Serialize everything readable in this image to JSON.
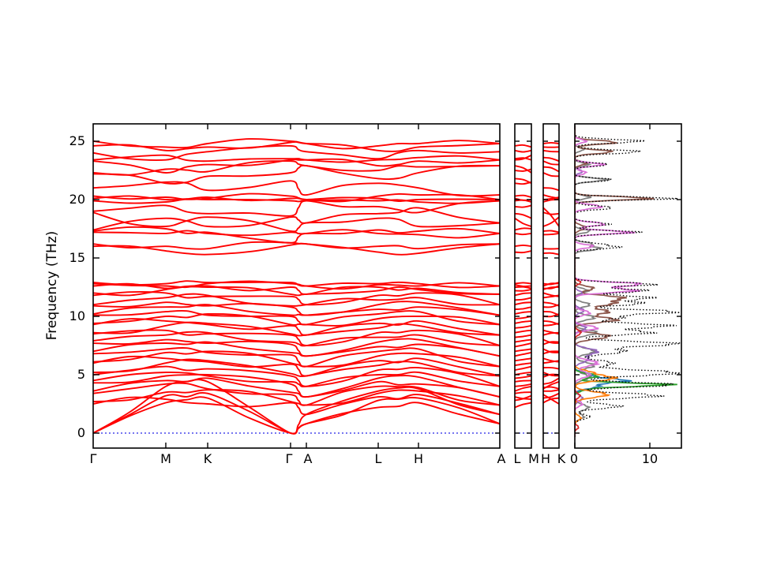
{
  "chart_data": {
    "type": "line",
    "title": "",
    "ylabel": "Frequency (THz)",
    "ylim": [
      -1.3,
      26.5
    ],
    "yticks": [
      0,
      5,
      10,
      15,
      20,
      25
    ],
    "ytick_labels_desc": [
      "25",
      "20",
      "15",
      "10",
      "5",
      "0"
    ],
    "band_color": "#ff0000",
    "zero_line_color": "#2424e8",
    "axis_color": "#000000",
    "legend": null,
    "grid": false,
    "panels": {
      "main": {
        "kpath": [
          "Γ",
          "M",
          "K",
          "Γ",
          "A",
          "L",
          "H",
          "A"
        ],
        "k_fracs": [
          0,
          0.1786,
          0.2816,
          0.4854,
          0.5243,
          0.701,
          0.8,
          1.0
        ]
      },
      "lm": {
        "kpath": [
          "L",
          "M"
        ]
      },
      "hk": {
        "kpath": [
          "H",
          "K"
        ]
      },
      "dos": {
        "xtick_labels": [
          "0",
          "10"
        ],
        "xticks": [
          0,
          10
        ],
        "xmax": 14.2,
        "xlabel": ""
      }
    },
    "bands": [
      [
        0.0,
        2.6,
        3.0,
        0.0,
        0.8,
        2.2,
        2.6,
        0.8
      ],
      [
        0.0,
        3.2,
        3.4,
        0.0,
        0.8,
        2.8,
        3.0,
        0.8
      ],
      [
        0.0,
        4.0,
        4.4,
        0.0,
        1.6,
        3.6,
        3.8,
        1.6
      ],
      [
        2.5,
        2.9,
        2.5,
        2.6,
        1.6,
        3.1,
        3.3,
        1.6
      ],
      [
        2.7,
        3.5,
        3.7,
        2.7,
        2.4,
        3.4,
        3.6,
        2.4
      ],
      [
        3.4,
        4.2,
        3.8,
        3.3,
        2.4,
        4.0,
        3.9,
        2.4
      ],
      [
        3.6,
        4.5,
        4.7,
        3.5,
        3.1,
        4.4,
        4.2,
        3.1
      ],
      [
        4.3,
        4.9,
        5.0,
        4.2,
        3.1,
        4.7,
        4.8,
        3.1
      ],
      [
        4.5,
        5.2,
        4.9,
        4.4,
        4.0,
        5.0,
        5.2,
        4.0
      ],
      [
        5.0,
        5.7,
        5.5,
        4.9,
        4.0,
        5.4,
        5.6,
        4.0
      ],
      [
        5.2,
        6.0,
        6.2,
        5.1,
        4.9,
        5.8,
        6.0,
        4.9
      ],
      [
        6.0,
        6.4,
        6.1,
        5.9,
        4.9,
        6.2,
        6.4,
        4.9
      ],
      [
        6.1,
        6.9,
        7.0,
        6.0,
        5.7,
        6.6,
        6.8,
        5.7
      ],
      [
        6.8,
        7.2,
        6.9,
        6.7,
        5.7,
        7.0,
        7.2,
        5.7
      ],
      [
        7.0,
        7.7,
        7.8,
        6.9,
        6.6,
        7.4,
        7.6,
        6.6
      ],
      [
        7.7,
        8.0,
        7.7,
        7.6,
        6.6,
        7.8,
        8.0,
        6.6
      ],
      [
        7.9,
        8.4,
        8.6,
        7.8,
        7.5,
        8.2,
        8.4,
        7.5
      ],
      [
        8.5,
        8.8,
        8.5,
        8.4,
        7.5,
        8.6,
        8.8,
        7.5
      ],
      [
        8.6,
        9.2,
        9.4,
        8.5,
        8.4,
        9.0,
        9.2,
        8.4
      ],
      [
        9.3,
        9.6,
        9.3,
        9.2,
        8.4,
        9.4,
        9.6,
        8.4
      ],
      [
        9.4,
        10.0,
        10.2,
        9.3,
        9.3,
        9.8,
        10.0,
        9.3
      ],
      [
        10.1,
        10.4,
        10.1,
        10.0,
        9.3,
        10.2,
        10.4,
        9.3
      ],
      [
        10.2,
        10.8,
        11.0,
        10.1,
        10.1,
        10.6,
        10.8,
        10.1
      ],
      [
        10.9,
        11.2,
        10.9,
        10.8,
        10.1,
        11.0,
        11.2,
        10.1
      ],
      [
        11.0,
        11.6,
        11.8,
        10.9,
        11.0,
        11.4,
        11.6,
        11.0
      ],
      [
        11.8,
        12.0,
        11.7,
        11.7,
        11.0,
        11.8,
        12.0,
        11.0
      ],
      [
        12.0,
        12.3,
        12.5,
        11.9,
        11.9,
        12.2,
        12.3,
        11.9
      ],
      [
        12.6,
        12.4,
        12.6,
        12.5,
        11.9,
        12.5,
        12.4,
        11.9
      ],
      [
        12.8,
        12.6,
        12.8,
        12.8,
        12.6,
        12.7,
        12.6,
        12.6
      ],
      [
        12.9,
        12.8,
        12.9,
        12.9,
        12.6,
        12.8,
        12.8,
        12.6
      ],
      [
        16.0,
        15.6,
        15.3,
        16.1,
        16.2,
        15.5,
        15.4,
        16.2
      ],
      [
        16.2,
        16.0,
        15.8,
        16.3,
        16.2,
        16.0,
        15.8,
        16.2
      ],
      [
        17.2,
        17.1,
        17.1,
        17.2,
        17.1,
        17.1,
        17.0,
        17.1
      ],
      [
        17.3,
        17.5,
        17.2,
        16.3,
        17.1,
        17.4,
        17.3,
        17.1
      ],
      [
        18.9,
        17.7,
        18.5,
        17.3,
        18.0,
        18.4,
        17.7,
        18.0
      ],
      [
        17.4,
        18.4,
        17.7,
        18.5,
        18.0,
        18.8,
        19.3,
        18.0
      ],
      [
        19.0,
        19.5,
        18.8,
        18.6,
        19.9,
        19.4,
        18.9,
        19.9
      ],
      [
        19.9,
        19.8,
        20.0,
        19.9,
        19.9,
        19.9,
        19.8,
        19.9
      ],
      [
        20.1,
        20.0,
        20.2,
        20.1,
        20.0,
        20.1,
        20.0,
        20.0
      ],
      [
        20.3,
        20.2,
        20.1,
        20.3,
        20.0,
        20.3,
        20.4,
        20.0
      ],
      [
        21.0,
        21.5,
        20.8,
        21.6,
        20.4,
        21.4,
        21.0,
        20.4
      ],
      [
        22.2,
        21.4,
        22.0,
        22.3,
        22.9,
        21.8,
        22.3,
        22.9
      ],
      [
        22.3,
        22.6,
        22.4,
        23.3,
        22.9,
        22.5,
        22.8,
        22.9
      ],
      [
        23.3,
        22.3,
        23.0,
        23.4,
        23.4,
        22.9,
        23.3,
        23.4
      ],
      [
        23.4,
        23.8,
        23.3,
        23.5,
        23.4,
        23.4,
        23.6,
        23.4
      ],
      [
        24.0,
        23.4,
        24.1,
        24.6,
        24.1,
        23.5,
        24.2,
        24.1
      ],
      [
        24.6,
        24.2,
        24.5,
        24.9,
        24.8,
        24.2,
        24.5,
        24.8
      ],
      [
        25.0,
        24.5,
        24.8,
        25.0,
        24.8,
        24.6,
        24.8,
        24.8
      ]
    ],
    "dos_series": [
      {
        "name": "pdos-gray",
        "color": "#7f7f7f",
        "style": "solid",
        "peaks": [
          [
            1.4,
            1.2,
            0.2
          ],
          [
            2.2,
            1.8,
            0.25
          ],
          [
            4.8,
            2.0,
            0.25
          ],
          [
            5.8,
            2.6,
            0.25
          ],
          [
            7.0,
            2.6,
            0.25
          ],
          [
            8.6,
            3.0,
            0.22
          ],
          [
            9.9,
            2.6,
            0.22
          ],
          [
            11.0,
            2.0,
            0.2
          ],
          [
            12.2,
            1.8,
            0.18
          ],
          [
            15.8,
            3.3,
            0.15
          ],
          [
            16.2,
            2.3,
            0.15
          ],
          [
            17.3,
            2.0,
            0.15
          ],
          [
            20.2,
            2.0,
            0.15
          ],
          [
            21.7,
            4.3,
            0.15
          ],
          [
            23.0,
            1.8,
            0.15
          ],
          [
            24.3,
            1.2,
            0.15
          ]
        ]
      },
      {
        "name": "pdos-purple",
        "color": "#9467bd",
        "style": "solid",
        "peaks": [
          [
            3.0,
            1.0,
            0.25
          ],
          [
            6.3,
            1.8,
            0.25
          ],
          [
            7.0,
            3.0,
            0.25
          ],
          [
            9.0,
            1.5,
            0.2
          ],
          [
            10.5,
            1.2,
            0.2
          ],
          [
            12.0,
            1.0,
            0.18
          ],
          [
            22.4,
            1.0,
            0.15
          ]
        ]
      },
      {
        "name": "pdos-blue",
        "color": "#1f77b4",
        "style": "solid",
        "peaks": [
          [
            4.0,
            3.0,
            0.2
          ],
          [
            4.5,
            6.8,
            0.18
          ],
          [
            5.0,
            2.0,
            0.2
          ]
        ]
      },
      {
        "name": "pdos-green",
        "color": "#2ca02c",
        "style": "solid",
        "peaks": [
          [
            3.8,
            1.5,
            0.2
          ],
          [
            4.15,
            12.2,
            0.15
          ],
          [
            4.9,
            3.0,
            0.2
          ]
        ]
      },
      {
        "name": "pdos-orange",
        "color": "#ff7f0e",
        "style": "solid",
        "peaks": [
          [
            1.3,
            0.8,
            0.2
          ],
          [
            3.3,
            4.3,
            0.25
          ],
          [
            4.7,
            5.2,
            0.22
          ],
          [
            5.2,
            2.0,
            0.2
          ]
        ]
      },
      {
        "name": "pdos-brown",
        "color": "#8c564b",
        "style": "solid",
        "peaks": [
          [
            8.3,
            4.5,
            0.25
          ],
          [
            9.7,
            5.5,
            0.22
          ],
          [
            10.4,
            4.5,
            0.22
          ],
          [
            11.1,
            5.0,
            0.22
          ],
          [
            11.6,
            6.0,
            0.2
          ],
          [
            12.4,
            2.5,
            0.2
          ],
          [
            17.6,
            1.5,
            0.2
          ],
          [
            20.1,
            10.0,
            0.15
          ],
          [
            23.1,
            1.5,
            0.15
          ],
          [
            24.1,
            5.0,
            0.16
          ],
          [
            24.9,
            5.5,
            0.16
          ]
        ]
      },
      {
        "name": "pdos-orchid",
        "color": "#da70d6",
        "style": "solid",
        "peaks": [
          [
            2.5,
            1.0,
            0.2
          ],
          [
            5.0,
            2.0,
            0.25
          ],
          [
            6.0,
            3.0,
            0.25
          ],
          [
            9.0,
            3.0,
            0.2
          ],
          [
            10.3,
            2.0,
            0.2
          ],
          [
            12.2,
            8.0,
            0.18
          ],
          [
            12.75,
            8.8,
            0.18
          ],
          [
            16.0,
            2.5,
            0.15
          ],
          [
            17.2,
            7.5,
            0.15
          ],
          [
            17.9,
            4.0,
            0.16
          ],
          [
            19.4,
            3.5,
            0.18
          ],
          [
            22.3,
            1.5,
            0.15
          ],
          [
            23.0,
            3.8,
            0.15
          ],
          [
            25.0,
            1.5,
            0.15
          ]
        ]
      },
      {
        "name": "pdos-red",
        "color": "#d62728",
        "style": "solid",
        "peaks": [
          [
            0.5,
            0.5,
            0.15
          ],
          [
            3.2,
            0.7,
            0.2
          ],
          [
            8.6,
            0.8,
            0.2
          ],
          [
            12.9,
            0.8,
            0.15
          ]
        ]
      },
      {
        "name": "total-dos",
        "color": "#000000",
        "style": "dotted",
        "peaks": [
          [
            1.4,
            2.0,
            0.2
          ],
          [
            2.3,
            6.0,
            0.2
          ],
          [
            3.2,
            11.0,
            0.22
          ],
          [
            4.15,
            13.0,
            0.2
          ],
          [
            5.15,
            13.8,
            0.25
          ],
          [
            6.0,
            5.0,
            0.25
          ],
          [
            7.0,
            6.5,
            0.25
          ],
          [
            7.65,
            13.6,
            0.2
          ],
          [
            8.6,
            10.0,
            0.2
          ],
          [
            9.2,
            12.5,
            0.2
          ],
          [
            9.9,
            6.0,
            0.2
          ],
          [
            10.4,
            13.4,
            0.18
          ],
          [
            11.1,
            8.8,
            0.18
          ],
          [
            11.6,
            10.0,
            0.18
          ],
          [
            12.2,
            9.6,
            0.16
          ],
          [
            12.75,
            10.5,
            0.16
          ],
          [
            15.9,
            5.5,
            0.14
          ],
          [
            16.2,
            3.0,
            0.14
          ],
          [
            17.2,
            8.5,
            0.14
          ],
          [
            17.9,
            4.5,
            0.16
          ],
          [
            19.3,
            5.0,
            0.16
          ],
          [
            20.1,
            13.0,
            0.14
          ],
          [
            21.7,
            5.0,
            0.14
          ],
          [
            23.0,
            4.5,
            0.14
          ],
          [
            24.1,
            8.6,
            0.16
          ],
          [
            25.0,
            8.8,
            0.16
          ]
        ]
      }
    ]
  }
}
